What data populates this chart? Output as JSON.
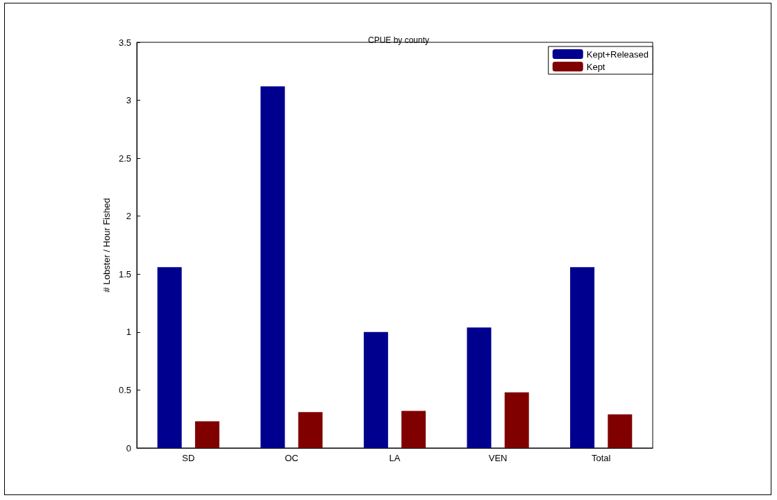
{
  "chart_data": {
    "type": "bar",
    "title": "CPUE by county",
    "ylabel": "# Lobster / Hour Fished",
    "categories": [
      "SD",
      "OC",
      "LA",
      "VEN",
      "Total"
    ],
    "series": [
      {
        "name": "Kept+Released",
        "color": "#00008f",
        "values": [
          1.56,
          3.12,
          1.0,
          1.04,
          1.56
        ]
      },
      {
        "name": "Kept",
        "color": "#800000",
        "values": [
          0.23,
          0.31,
          0.32,
          0.48,
          0.29
        ]
      }
    ],
    "ylim": [
      0,
      3.5
    ],
    "yticks": [
      0,
      0.5,
      1,
      1.5,
      2,
      2.5,
      3,
      3.5
    ],
    "grid": false,
    "legend": "top right"
  }
}
